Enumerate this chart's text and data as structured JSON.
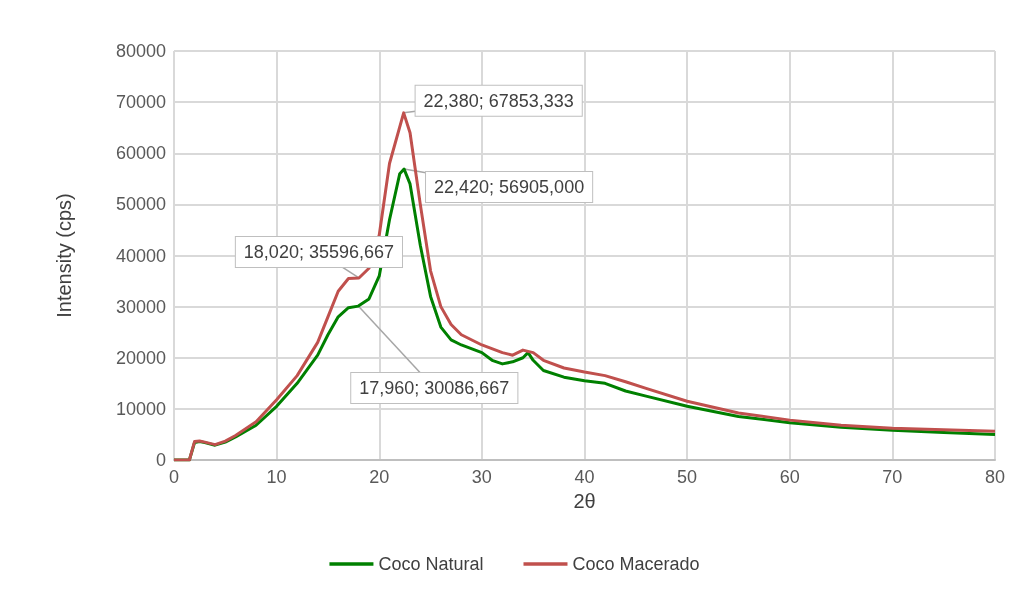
{
  "chart_data": {
    "type": "line",
    "xlabel": "2θ",
    "ylabel": "Intensity (cps)",
    "xlim": [
      0,
      80
    ],
    "xticks": [
      0,
      10,
      20,
      30,
      40,
      50,
      60,
      70,
      80
    ],
    "ylim": [
      0,
      80000
    ],
    "yticks": [
      0,
      10000,
      20000,
      30000,
      40000,
      50000,
      60000,
      70000,
      80000
    ],
    "grid": true,
    "legend": "bottom",
    "marker": "none",
    "line_style": "solid",
    "series": [
      {
        "name": "Coco Natural",
        "color": "#008000",
        "x": [
          0,
          1.5,
          2,
          2.5,
          3,
          4,
          5,
          6,
          8,
          10,
          12,
          14,
          15,
          16,
          17,
          17.96,
          19,
          20,
          21,
          22,
          22.42,
          23,
          24,
          25,
          26,
          27,
          28,
          30,
          31,
          32,
          33,
          34,
          34.5,
          35,
          36,
          38,
          40,
          42,
          44,
          46,
          50,
          55,
          60,
          65,
          70,
          75,
          80
        ],
        "values": [
          0,
          0,
          3400,
          3600,
          3400,
          2900,
          3500,
          4500,
          6800,
          10500,
          15000,
          20500,
          24500,
          28000,
          29800,
          30100,
          31500,
          36000,
          47000,
          56000,
          56900,
          54000,
          42000,
          32000,
          26000,
          23500,
          22500,
          21000,
          19500,
          18800,
          19200,
          20000,
          21000,
          19500,
          17500,
          16200,
          15500,
          15000,
          13500,
          12500,
          10500,
          8500,
          7300,
          6400,
          5800,
          5400,
          5000
        ]
      },
      {
        "name": "Coco Macerado",
        "color": "#c0504d",
        "x": [
          0,
          1.5,
          2,
          2.5,
          3,
          4,
          5,
          6,
          8,
          10,
          12,
          14,
          15,
          16,
          17,
          18.02,
          19,
          20,
          21,
          22.38,
          23,
          24,
          25,
          26,
          27,
          28,
          30,
          32,
          33,
          34,
          35,
          36,
          38,
          40,
          42,
          44,
          46,
          50,
          55,
          60,
          65,
          70,
          75,
          80
        ],
        "values": [
          0,
          0,
          3600,
          3700,
          3500,
          3000,
          3700,
          4800,
          7500,
          11800,
          16500,
          23000,
          28000,
          33000,
          35500,
          35600,
          37500,
          44000,
          58000,
          67900,
          64000,
          50000,
          37000,
          30000,
          26500,
          24500,
          22500,
          21000,
          20500,
          21500,
          21000,
          19500,
          18000,
          17200,
          16500,
          15300,
          14000,
          11500,
          9200,
          7800,
          6800,
          6200,
          5900,
          5600
        ]
      }
    ],
    "annotations": [
      {
        "text": "22,380; 67853,333",
        "x": 22.38,
        "y": 67900
      },
      {
        "text": "22,420; 56905,000",
        "x": 22.42,
        "y": 56900
      },
      {
        "text": "18,020; 35596,667",
        "x": 18.02,
        "y": 35600
      },
      {
        "text": "17,960; 30086,667",
        "x": 17.96,
        "y": 30100
      }
    ]
  }
}
